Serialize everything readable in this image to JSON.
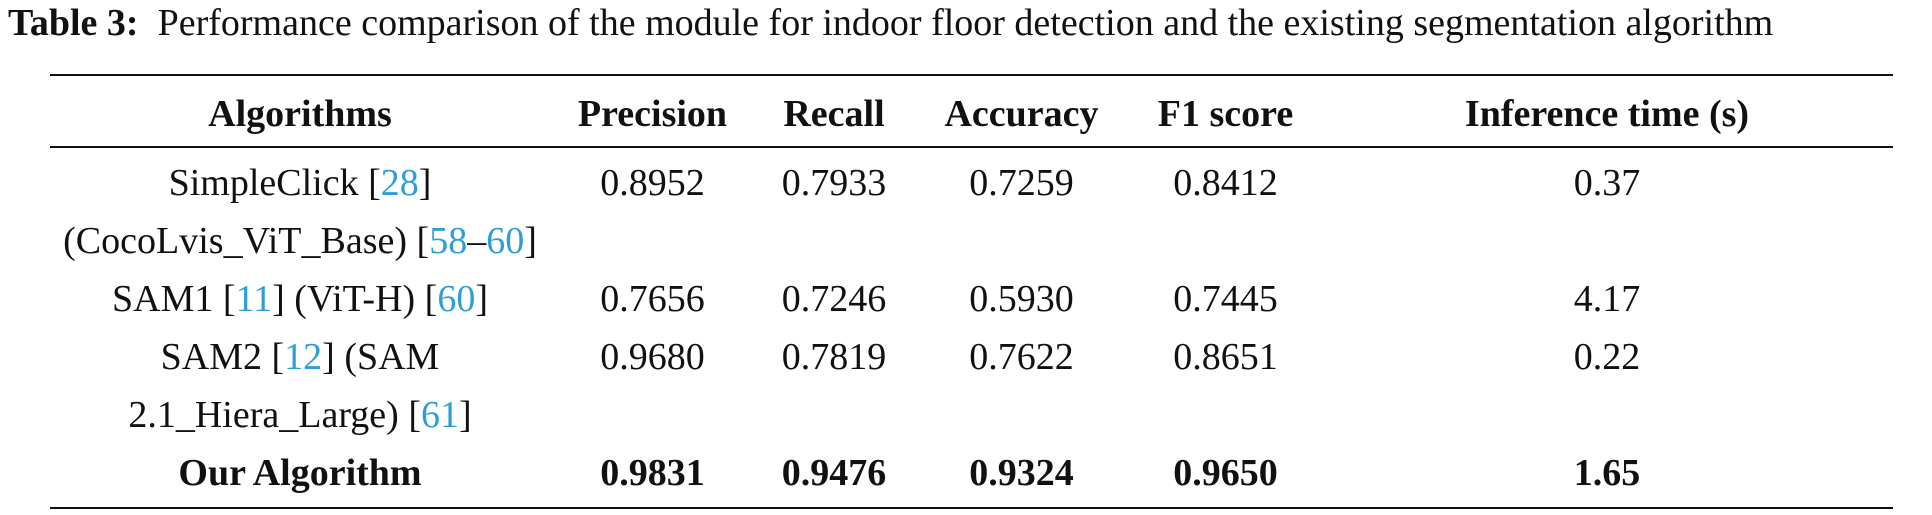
{
  "caption": {
    "label": "Table 3:",
    "text": "Performance comparison of the module for indoor floor detection and the existing segmentation algorithm"
  },
  "table": {
    "headers": [
      "Algorithms",
      "Precision",
      "Recall",
      "Accuracy",
      "F1 score",
      "Inference time (s)"
    ],
    "rows": [
      {
        "name_lines": [
          [
            {
              "t": "SimpleClick ["
            },
            {
              "t": "28",
              "ref": true
            },
            {
              "t": "]"
            }
          ],
          [
            {
              "t": "(CocoLvis_ViT_Base) ["
            },
            {
              "t": "58",
              "ref": true
            },
            {
              "t": "–"
            },
            {
              "t": "60",
              "ref": true
            },
            {
              "t": "]"
            }
          ]
        ],
        "precision": "0.8952",
        "recall": "0.7933",
        "accuracy": "0.7259",
        "f1": "0.8412",
        "time": "0.37"
      },
      {
        "name_lines": [
          [
            {
              "t": "SAM1 ["
            },
            {
              "t": "11",
              "ref": true
            },
            {
              "t": "] (ViT-H) ["
            },
            {
              "t": "60",
              "ref": true
            },
            {
              "t": "]"
            }
          ]
        ],
        "precision": "0.7656",
        "recall": "0.7246",
        "accuracy": "0.5930",
        "f1": "0.7445",
        "time": "4.17"
      },
      {
        "name_lines": [
          [
            {
              "t": "SAM2 ["
            },
            {
              "t": "12",
              "ref": true
            },
            {
              "t": "] (SAM"
            }
          ],
          [
            {
              "t": "2.1_Hiera_Large) ["
            },
            {
              "t": "61",
              "ref": true
            },
            {
              "t": "]"
            }
          ]
        ],
        "precision": "0.9680",
        "recall": "0.7819",
        "accuracy": "0.7622",
        "f1": "0.8651",
        "time": "0.22"
      },
      {
        "name_lines": [
          [
            {
              "t": "Our Algorithm"
            }
          ]
        ],
        "precision": "0.9831",
        "recall": "0.9476",
        "accuracy": "0.9324",
        "f1": "0.9650",
        "time": "1.65"
      }
    ]
  }
}
